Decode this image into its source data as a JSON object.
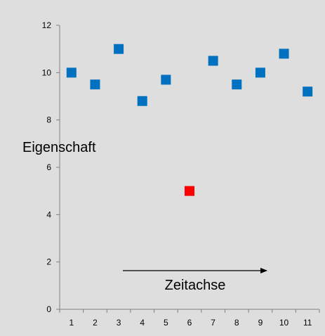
{
  "chart_data": {
    "type": "scatter",
    "x": [
      1,
      2,
      3,
      4,
      5,
      6,
      7,
      8,
      9,
      10,
      11
    ],
    "y": [
      10.0,
      9.5,
      11.0,
      8.8,
      9.7,
      5.0,
      10.5,
      9.5,
      10.0,
      10.8,
      9.2
    ],
    "point_colors": [
      "#0070c0",
      "#0070c0",
      "#0070c0",
      "#0070c0",
      "#0070c0",
      "#ff0000",
      "#0070c0",
      "#0070c0",
      "#0070c0",
      "#0070c0",
      "#0070c0"
    ],
    "x_ticks": [
      "1",
      "2",
      "3",
      "4",
      "5",
      "6",
      "7",
      "8",
      "9",
      "10",
      "11"
    ],
    "y_ticks": [
      "0",
      "2",
      "4",
      "6",
      "8",
      "10",
      "12"
    ],
    "xlim": [
      0.5,
      11.5
    ],
    "ylim": [
      0,
      12
    ],
    "grid": false,
    "marker": "square",
    "annotations": {
      "ylabel_text": "Eigenschaft",
      "arrow_label": "Zeitachse"
    }
  }
}
